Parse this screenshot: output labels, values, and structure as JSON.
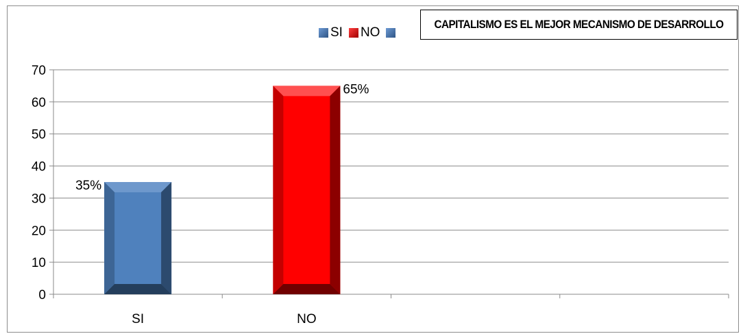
{
  "chart_data": {
    "type": "bar",
    "title": "CAPITALISMO ES EL MEJOR MECANISMO DE DESARROLLO",
    "categories": [
      "SI",
      "NO",
      "",
      ""
    ],
    "series": [
      {
        "name": "SI",
        "color": "#4f81bd",
        "values": [
          35,
          null,
          null,
          null
        ],
        "labels": [
          "35%",
          null,
          null,
          null
        ]
      },
      {
        "name": "NO",
        "color": "#ff0000",
        "values": [
          null,
          65,
          null,
          null
        ],
        "labels": [
          null,
          "65%",
          null,
          null
        ]
      },
      {
        "name": "",
        "color": "#4f81bd",
        "values": [
          null,
          null,
          null,
          null
        ],
        "labels": [
          null,
          null,
          null,
          null
        ]
      }
    ],
    "ylim": [
      0,
      70
    ],
    "yticks": [
      0,
      10,
      20,
      30,
      40,
      50,
      60,
      70
    ],
    "grid": true,
    "legend_position": "top"
  }
}
